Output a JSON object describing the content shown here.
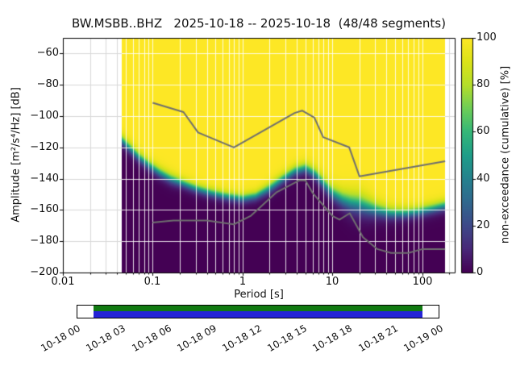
{
  "title": "BW.MSBB..BHZ   2025-10-18 -- 2025-10-18  (48/48 segments)",
  "axes": {
    "xlabel": "Period [s]",
    "ylabel": "Amplitude [m²/s⁴/Hz] [dB]",
    "x_ticks": [
      "0.01",
      "0.1",
      "1",
      "10",
      "100"
    ],
    "y_ticks": [
      "−60",
      "−80",
      "−100",
      "−120",
      "−140",
      "−160",
      "−180",
      "−200"
    ]
  },
  "colorbar": {
    "label": "non-exceedance (cumulative) [%]",
    "ticks": [
      "0",
      "20",
      "40",
      "60",
      "80",
      "100"
    ]
  },
  "coverage": {
    "time_labels": [
      "10-18 00",
      "10-18 03",
      "10-18 06",
      "10-18 09",
      "10-18 12",
      "10-18 15",
      "10-18 18",
      "10-18 21",
      "10-19 00"
    ],
    "green": "#117a11",
    "blue": "#2424d6",
    "fill_start_pct": 4.4,
    "fill_end_pct": 95.6
  },
  "chart_data": {
    "type": "heatmap",
    "title": "BW.MSBB..BHZ 2025-10-18 -- 2025-10-18 (48/48 segments)",
    "station": "BW.MSBB..BHZ",
    "date_start": "2025-10-18",
    "date_end": "2025-10-18",
    "segments_used": 48,
    "segments_total": 48,
    "xlabel": "Period [s]",
    "ylabel": "Amplitude [m²/s⁴/Hz] [dB]",
    "colorbar_label": "non-exceedance (cumulative) [%]",
    "colorbar_range": [
      0,
      100
    ],
    "x_scale": "log",
    "xlim": [
      0.01,
      230
    ],
    "ylim": [
      -200,
      -50
    ],
    "x_ticks": [
      0.01,
      0.1,
      1,
      10,
      100
    ],
    "y_ticks": [
      -60,
      -80,
      -100,
      -120,
      -140,
      -160,
      -180,
      -200
    ],
    "grid": true,
    "data_period_range": [
      0.045,
      180
    ],
    "cumulative_boundary": [
      [
        0.045,
        -115,
        4
      ],
      [
        0.055,
        -120,
        4
      ],
      [
        0.07,
        -126,
        4
      ],
      [
        0.09,
        -131,
        4
      ],
      [
        0.12,
        -136,
        4
      ],
      [
        0.16,
        -140,
        4
      ],
      [
        0.22,
        -143,
        3.5
      ],
      [
        0.3,
        -146,
        3.5
      ],
      [
        0.45,
        -149,
        3.5
      ],
      [
        0.65,
        -151,
        3.5
      ],
      [
        1.0,
        -152.5,
        3.5
      ],
      [
        1.4,
        -151,
        3.5
      ],
      [
        2.0,
        -146,
        4
      ],
      [
        2.8,
        -140,
        4
      ],
      [
        3.8,
        -135,
        4
      ],
      [
        5.0,
        -133,
        4
      ],
      [
        6.5,
        -137,
        4.5
      ],
      [
        8.0,
        -143,
        5
      ],
      [
        10,
        -149,
        5.5
      ],
      [
        13,
        -153,
        6.5
      ],
      [
        16,
        -155,
        7.5
      ],
      [
        20,
        -156,
        8
      ],
      [
        25,
        -158,
        7
      ],
      [
        32,
        -160,
        5.5
      ],
      [
        45,
        -162,
        4.5
      ],
      [
        65,
        -162,
        4
      ],
      [
        90,
        -161,
        4
      ],
      [
        130,
        -159,
        4
      ],
      [
        180,
        -157,
        4
      ]
    ],
    "noise_models": {
      "NHNM": [
        [
          0.1,
          -91.5
        ],
        [
          0.22,
          -97.4
        ],
        [
          0.32,
          -110.5
        ],
        [
          0.8,
          -120.0
        ],
        [
          3.8,
          -98.0
        ],
        [
          4.6,
          -96.5
        ],
        [
          6.3,
          -101.0
        ],
        [
          7.9,
          -113.5
        ],
        [
          15.4,
          -120.0
        ],
        [
          20.0,
          -138.5
        ],
        [
          180.0,
          -128.9
        ]
      ],
      "NLNM": [
        [
          0.1,
          -168.0
        ],
        [
          0.17,
          -166.7
        ],
        [
          0.4,
          -166.7
        ],
        [
          0.8,
          -169.2
        ],
        [
          1.24,
          -163.7
        ],
        [
          2.4,
          -148.6
        ],
        [
          4.3,
          -141.1
        ],
        [
          5.0,
          -141.1
        ],
        [
          6.0,
          -149.0
        ],
        [
          10.0,
          -163.8
        ],
        [
          12.0,
          -166.2
        ],
        [
          15.6,
          -162.1
        ],
        [
          21.9,
          -177.5
        ],
        [
          31.6,
          -185.0
        ],
        [
          45.0,
          -187.5
        ],
        [
          70.0,
          -187.5
        ],
        [
          101.0,
          -185.0
        ],
        [
          180.0,
          -185.0
        ]
      ]
    },
    "colormap": [
      [
        0.0,
        "#440154"
      ],
      [
        0.1,
        "#482878"
      ],
      [
        0.2,
        "#3e4989"
      ],
      [
        0.3,
        "#31688e"
      ],
      [
        0.4,
        "#26828e"
      ],
      [
        0.5,
        "#1f9e89"
      ],
      [
        0.6,
        "#35b779"
      ],
      [
        0.7,
        "#6ece58"
      ],
      [
        0.8,
        "#b5de2b"
      ],
      [
        0.9,
        "#dce319"
      ],
      [
        1.0,
        "#fde725"
      ]
    ]
  }
}
